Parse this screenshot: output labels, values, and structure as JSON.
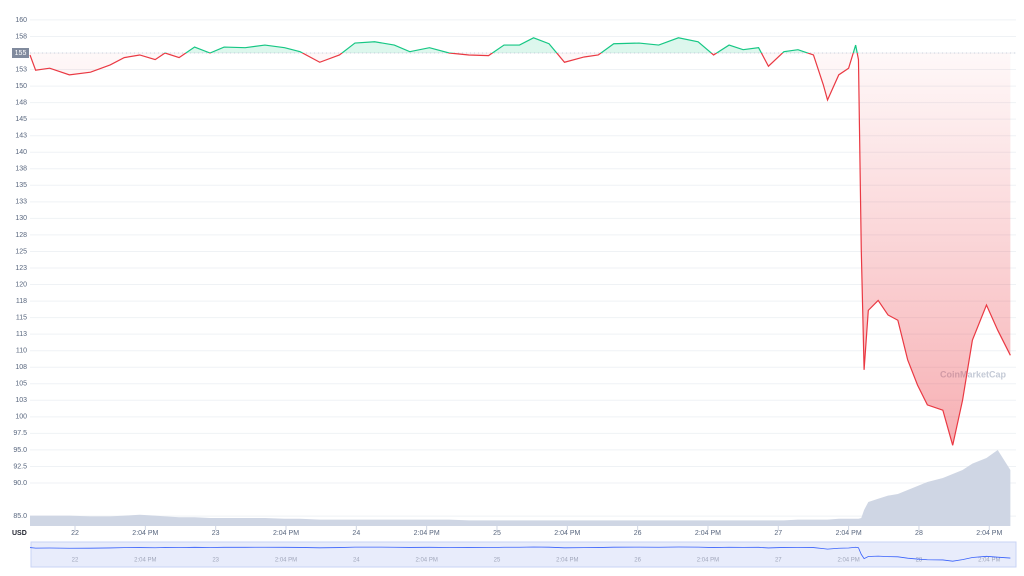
{
  "chart_data": {
    "type": "line",
    "x": [
      21.68,
      21.72,
      21.82,
      21.96,
      22.11,
      22.25,
      22.35,
      22.46,
      22.57,
      22.64,
      22.74,
      22.85,
      22.96,
      23.06,
      23.21,
      23.35,
      23.49,
      23.6,
      23.74,
      23.88,
      23.99,
      24.13,
      24.27,
      24.38,
      24.52,
      24.66,
      24.8,
      24.94,
      25.05,
      25.16,
      25.26,
      25.37,
      25.48,
      25.62,
      25.72,
      25.83,
      26.01,
      26.15,
      26.29,
      26.43,
      26.54,
      26.65,
      26.75,
      26.86,
      26.93,
      27.04,
      27.14,
      27.25,
      27.32,
      27.35,
      27.43,
      27.5,
      27.55,
      27.57,
      27.59,
      27.61,
      27.64,
      27.71,
      27.78,
      27.85,
      27.92,
      27.99,
      28.06,
      28.17,
      28.24,
      28.31,
      28.38,
      28.48,
      28.56,
      28.65
    ],
    "series": [
      {
        "name": "Price",
        "color_up": "#16c784",
        "color_down": "#ea3943",
        "values": [
          154.7,
          152.4,
          152.7,
          151.7,
          152.1,
          153.2,
          154.3,
          154.7,
          154.0,
          155.0,
          154.3,
          155.9,
          155.0,
          155.9,
          155.8,
          156.2,
          155.8,
          155.2,
          153.6,
          154.7,
          156.5,
          156.7,
          156.2,
          155.2,
          155.8,
          155.0,
          154.7,
          154.6,
          156.2,
          156.2,
          157.3,
          156.4,
          153.6,
          154.4,
          154.7,
          156.4,
          156.5,
          156.2,
          157.3,
          156.7,
          154.7,
          156.2,
          155.5,
          155.8,
          153.0,
          155.2,
          155.5,
          154.7,
          150.2,
          147.9,
          151.7,
          152.7,
          156.2,
          154.0,
          125.2,
          107.1,
          116.1,
          117.6,
          115.4,
          114.6,
          108.6,
          104.8,
          101.8,
          101.0,
          95.7,
          102.5,
          111.6,
          116.9,
          113.1,
          109.3
        ]
      },
      {
        "name": "Volume",
        "color": "#cfd6e4",
        "ylim": [
          0,
          100
        ],
        "values": [
          13,
          13,
          13,
          13,
          12,
          12,
          13,
          14,
          13,
          12,
          11,
          11,
          10,
          10,
          10,
          10,
          9,
          9,
          8,
          8,
          8,
          8,
          8,
          8,
          8,
          8,
          7,
          7,
          7,
          7,
          7,
          7,
          7,
          7,
          7,
          7,
          7,
          7,
          7,
          7,
          7,
          7,
          7,
          7,
          7,
          7,
          8,
          8,
          8,
          8,
          9,
          9,
          9,
          9,
          10,
          20,
          30,
          34,
          38,
          40,
          45,
          50,
          55,
          60,
          65,
          70,
          78,
          85,
          95,
          70
        ]
      }
    ],
    "baseline": 155,
    "xlim": [
      21.68,
      28.69
    ],
    "xticks": [
      22,
      {
        "value": 22.5,
        "label": "2:04 PM"
      },
      23,
      {
        "value": 23.5,
        "label": "2:04 PM"
      },
      24,
      {
        "value": 24.5,
        "label": "2:04 PM"
      },
      25,
      {
        "value": 25.5,
        "label": "2:04 PM"
      },
      26,
      {
        "value": 26.5,
        "label": "2:04 PM"
      },
      27,
      {
        "value": 27.5,
        "label": "2:04 PM"
      },
      28,
      {
        "value": 28.5,
        "label": "2:04 PM"
      }
    ],
    "ylim": [
      83.5,
      161.5
    ],
    "yticks": [
      160,
      {
        "value": 157.5,
        "label": "158"
      },
      155,
      {
        "value": 152.5,
        "label": "153"
      },
      150,
      {
        "value": 147.5,
        "label": "148"
      },
      145,
      {
        "value": 142.5,
        "label": "143"
      },
      140,
      {
        "value": 137.5,
        "label": "138"
      },
      135,
      {
        "value": 132.5,
        "label": "133"
      },
      130,
      {
        "value": 127.5,
        "label": "128"
      },
      125,
      {
        "value": 122.5,
        "label": "123"
      },
      120,
      {
        "value": 117.5,
        "label": "118"
      },
      115,
      {
        "value": 112.5,
        "label": "113"
      },
      110,
      {
        "value": 107.5,
        "label": "108"
      },
      105,
      {
        "value": 102.5,
        "label": "103"
      },
      100,
      97.5,
      {
        "value": 95,
        "label": "95.0"
      },
      92.5,
      {
        "value": 90,
        "label": "90.0"
      },
      {
        "value": 85,
        "label": "85.0"
      }
    ],
    "currency": "USD",
    "watermark": "CoinMarketCap",
    "grid": true
  }
}
